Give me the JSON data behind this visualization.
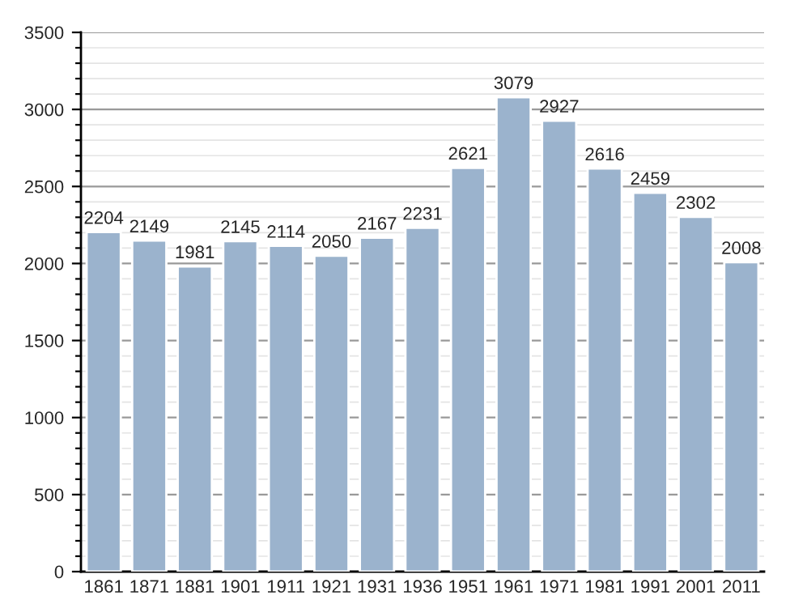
{
  "chart_data": {
    "type": "bar",
    "categories": [
      "1861",
      "1871",
      "1881",
      "1901",
      "1911",
      "1921",
      "1931",
      "1936",
      "1951",
      "1961",
      "1971",
      "1981",
      "1991",
      "2001",
      "2011"
    ],
    "values": [
      2204,
      2149,
      1981,
      2145,
      2114,
      2050,
      2167,
      2231,
      2621,
      3079,
      2927,
      2616,
      2459,
      2302,
      2008
    ],
    "color": "#9bb3cd",
    "ylim": [
      0,
      3500
    ],
    "yticks": [
      0,
      500,
      1000,
      1500,
      2000,
      2500,
      3000,
      3500
    ],
    "grid": "y",
    "data_labels": true
  }
}
